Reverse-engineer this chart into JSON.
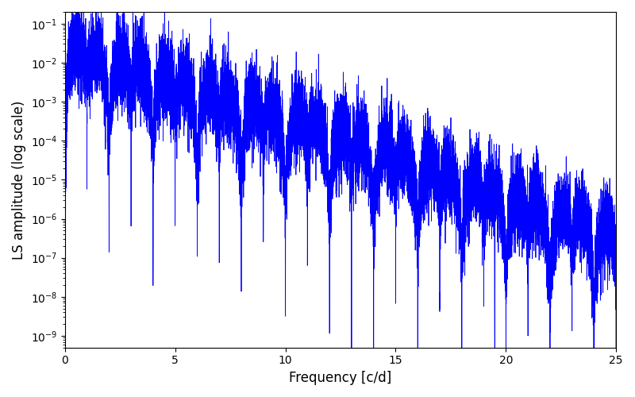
{
  "title": "",
  "xlabel": "Frequency [c/d]",
  "ylabel": "LS amplitude (log scale)",
  "xlim": [
    0,
    25
  ],
  "ylim_log": [
    5e-10,
    0.2
  ],
  "line_color": "#0000ff",
  "line_width": 0.6,
  "figsize": [
    8.0,
    5.0
  ],
  "dpi": 100,
  "background_color": "#ffffff",
  "freq_max": 25.0,
  "n_points": 15000,
  "seed": 7
}
